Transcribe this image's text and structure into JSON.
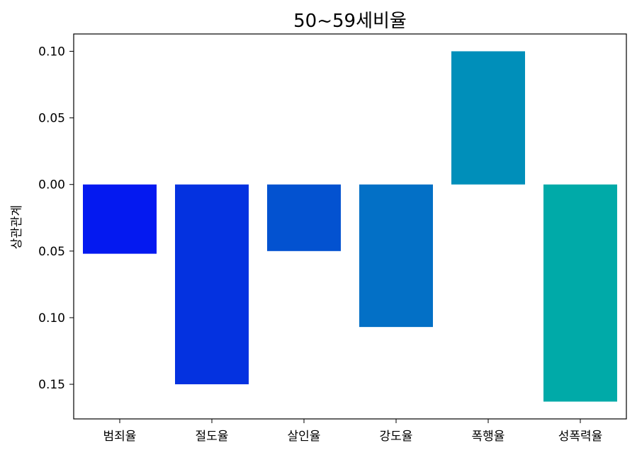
{
  "chart_data": {
    "type": "bar",
    "title": "50~59세비율",
    "xlabel": "",
    "ylabel": "상관관계",
    "categories": [
      "범죄율",
      "절도율",
      "살인율",
      "강도율",
      "폭행율",
      "성폭력율"
    ],
    "values": [
      -0.052,
      -0.15,
      -0.05,
      -0.107,
      0.1,
      -0.163
    ],
    "colors": [
      "#0419f0",
      "#0432e0",
      "#0352d0",
      "#0370c6",
      "#008fba",
      "#00aaa8"
    ],
    "ylim": [
      -0.176,
      0.113
    ],
    "yticks": [
      0.1,
      0.05,
      0.0,
      -0.05,
      -0.1,
      -0.15
    ],
    "ytick_labels": [
      "0.10",
      "0.05",
      "0.00",
      "0.05",
      "0.10",
      "0.15"
    ],
    "grid": false,
    "legend": "none"
  }
}
